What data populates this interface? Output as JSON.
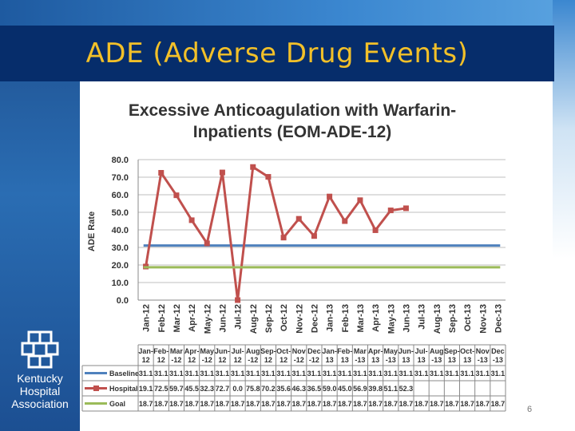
{
  "slide": {
    "title": "ADE (Adverse Drug Events)",
    "page_number": "6"
  },
  "logo": {
    "icon": "kha-squares-logo-icon",
    "lines": [
      "Kentucky",
      "Hospital",
      "Association"
    ]
  },
  "chart_data": {
    "type": "line",
    "title_lines": [
      "Excessive Anticoagulation with Warfarin-",
      "Inpatients (EOM-ADE-12)"
    ],
    "ylabel": "ADE Rate",
    "xlabel": "",
    "ylim": [
      0,
      80
    ],
    "yticks": [
      "0.0",
      "10.0",
      "20.0",
      "30.0",
      "40.0",
      "50.0",
      "60.0",
      "70.0",
      "80.0"
    ],
    "grid": true,
    "categories": [
      "Jan-12",
      "Feb-12",
      "Mar-12",
      "Apr-12",
      "May-12",
      "Jun-12",
      "Jul-12",
      "Aug-12",
      "Sep-12",
      "Oct-12",
      "Nov-12",
      "Dec-12",
      "Jan-13",
      "Feb-13",
      "Mar-13",
      "Apr-13",
      "May-13",
      "Jun-13",
      "Jul-13",
      "Aug-13",
      "Sep-13",
      "Oct-13",
      "Nov-13",
      "Dec-13"
    ],
    "table_headers": [
      [
        "Jan-",
        "12"
      ],
      [
        "Feb-",
        "12"
      ],
      [
        "Mar",
        "-12"
      ],
      [
        "Apr-",
        "12"
      ],
      [
        "May",
        "-12"
      ],
      [
        "Jun-",
        "12"
      ],
      [
        "Jul-",
        "12"
      ],
      [
        "Aug",
        "-12"
      ],
      [
        "Sep-",
        "12"
      ],
      [
        "Oct-",
        "12"
      ],
      [
        "Nov",
        "-12"
      ],
      [
        "Dec",
        "-12"
      ],
      [
        "Jan-",
        "13"
      ],
      [
        "Feb-",
        "13"
      ],
      [
        "Mar",
        "-13"
      ],
      [
        "Apr-",
        "13"
      ],
      [
        "May",
        "-13"
      ],
      [
        "Jun-",
        "13"
      ],
      [
        "Jul-",
        "13"
      ],
      [
        "Aug",
        "-13"
      ],
      [
        "Sep-",
        "13"
      ],
      [
        "Oct-",
        "13"
      ],
      [
        "Nov",
        "-13"
      ],
      [
        "Dec",
        "-13"
      ]
    ],
    "series": [
      {
        "name": "Baseline",
        "color": "#4f81bd",
        "marker": "none",
        "values": [
          31.1,
          31.1,
          31.1,
          31.1,
          31.1,
          31.1,
          31.1,
          31.1,
          31.1,
          31.1,
          31.1,
          31.1,
          31.1,
          31.1,
          31.1,
          31.1,
          31.1,
          31.1,
          31.1,
          31.1,
          31.1,
          31.1,
          31.1,
          31.1
        ],
        "labels": [
          "31.1",
          "31.1",
          "31.1",
          "31.1",
          "31.1",
          "31.1",
          "31.1",
          "31.1",
          "31.1",
          "31.1",
          "31.1",
          "31.1",
          "31.1",
          "31.1",
          "31.1",
          "31.1",
          "31.1",
          "31.1",
          "31.1",
          "31.1",
          "31.1",
          "31.1",
          "31.1",
          "31.1"
        ]
      },
      {
        "name": "Hospital",
        "color": "#c0504d",
        "marker": "square",
        "values": [
          19.1,
          72.5,
          59.7,
          45.5,
          32.3,
          72.7,
          0.0,
          75.8,
          70.2,
          35.6,
          46.3,
          36.5,
          59.0,
          45.0,
          56.9,
          39.8,
          51.1,
          52.3,
          null,
          null,
          null,
          null,
          null,
          null
        ],
        "labels": [
          "19.1",
          "72.5",
          "59.7",
          "45.5",
          "32.3",
          "72.7",
          "0.0",
          "75.8",
          "70.2",
          "35.6",
          "46.3",
          "36.5",
          "59.0",
          "45.0",
          "56.9",
          "39.8",
          "51.1",
          "52.3",
          "",
          "",
          "",
          "",
          "",
          ""
        ]
      },
      {
        "name": "Goal",
        "color": "#9bbb59",
        "marker": "none",
        "values": [
          18.7,
          18.7,
          18.7,
          18.7,
          18.7,
          18.7,
          18.7,
          18.7,
          18.7,
          18.7,
          18.7,
          18.7,
          18.7,
          18.7,
          18.7,
          18.7,
          18.7,
          18.7,
          18.7,
          18.7,
          18.7,
          18.7,
          18.7,
          18.7
        ],
        "labels": [
          "18.7",
          "18.7",
          "18.7",
          "18.7",
          "18.7",
          "18.7",
          "18.7",
          "18.7",
          "18.7",
          "18.7",
          "18.7",
          "18.7",
          "18.7",
          "18.7",
          "18.7",
          "18.7",
          "18.7",
          "18.7",
          "18.7",
          "18.7",
          "18.7",
          "18.7",
          "18.7",
          "18.7"
        ]
      }
    ]
  }
}
